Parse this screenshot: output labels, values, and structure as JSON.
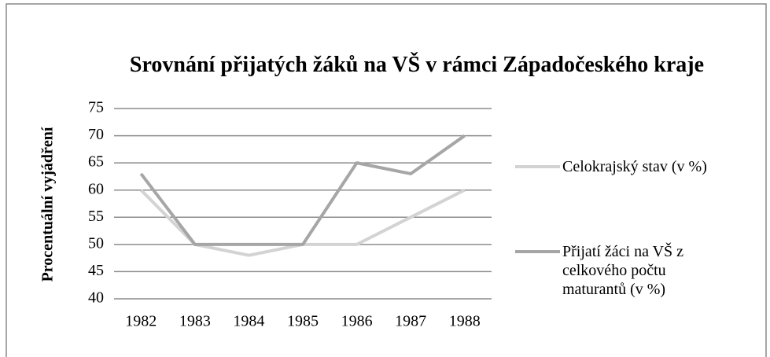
{
  "chart_data": {
    "type": "line",
    "title": "Srovnání přijatých žáků na VŠ v rámci Západočeského kraje",
    "y_label": "Procentuální vyjádření",
    "categories": [
      "1982",
      "1983",
      "1984",
      "1985",
      "1986",
      "1987",
      "1988"
    ],
    "series": [
      {
        "name": "Celokrajský stav (v %)",
        "color": "#d3d3d3",
        "values": [
          60,
          50,
          48,
          50,
          50,
          55,
          60
        ]
      },
      {
        "name": "Přijatí žáci na VŠ z celkového počtu maturantů (v %)",
        "color": "#a6a6a6",
        "values": [
          63,
          50,
          50,
          50,
          65,
          63,
          70
        ]
      }
    ],
    "ylim": [
      40,
      75
    ],
    "yticks": [
      40,
      45,
      50,
      55,
      60,
      65,
      70,
      75
    ],
    "grid": true,
    "legend": "right"
  }
}
